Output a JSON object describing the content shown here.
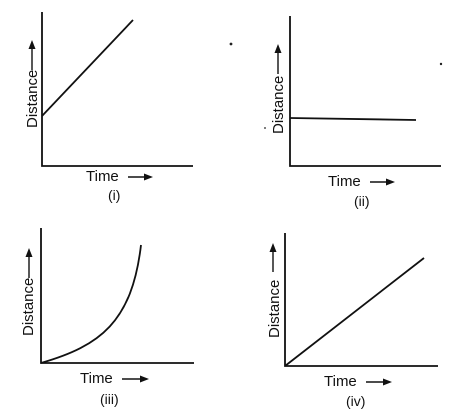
{
  "graphs": [
    {
      "id": "i",
      "label": "(i)",
      "y_axis_label": "Distance",
      "x_axis_label": "Time",
      "shape": "straight line starting above origin, rising"
    },
    {
      "id": "ii",
      "label": "(ii)",
      "y_axis_label": "Distance",
      "x_axis_label": "Time",
      "shape": "horizontal straight line"
    },
    {
      "id": "iii",
      "label": "(iii)",
      "y_axis_label": "Distance",
      "x_axis_label": "Time",
      "shape": "curve from origin bending upward steeply"
    },
    {
      "id": "iv",
      "label": "(iv)",
      "y_axis_label": "Distance",
      "x_axis_label": "Time",
      "shape": "straight line through origin, rising"
    }
  ]
}
